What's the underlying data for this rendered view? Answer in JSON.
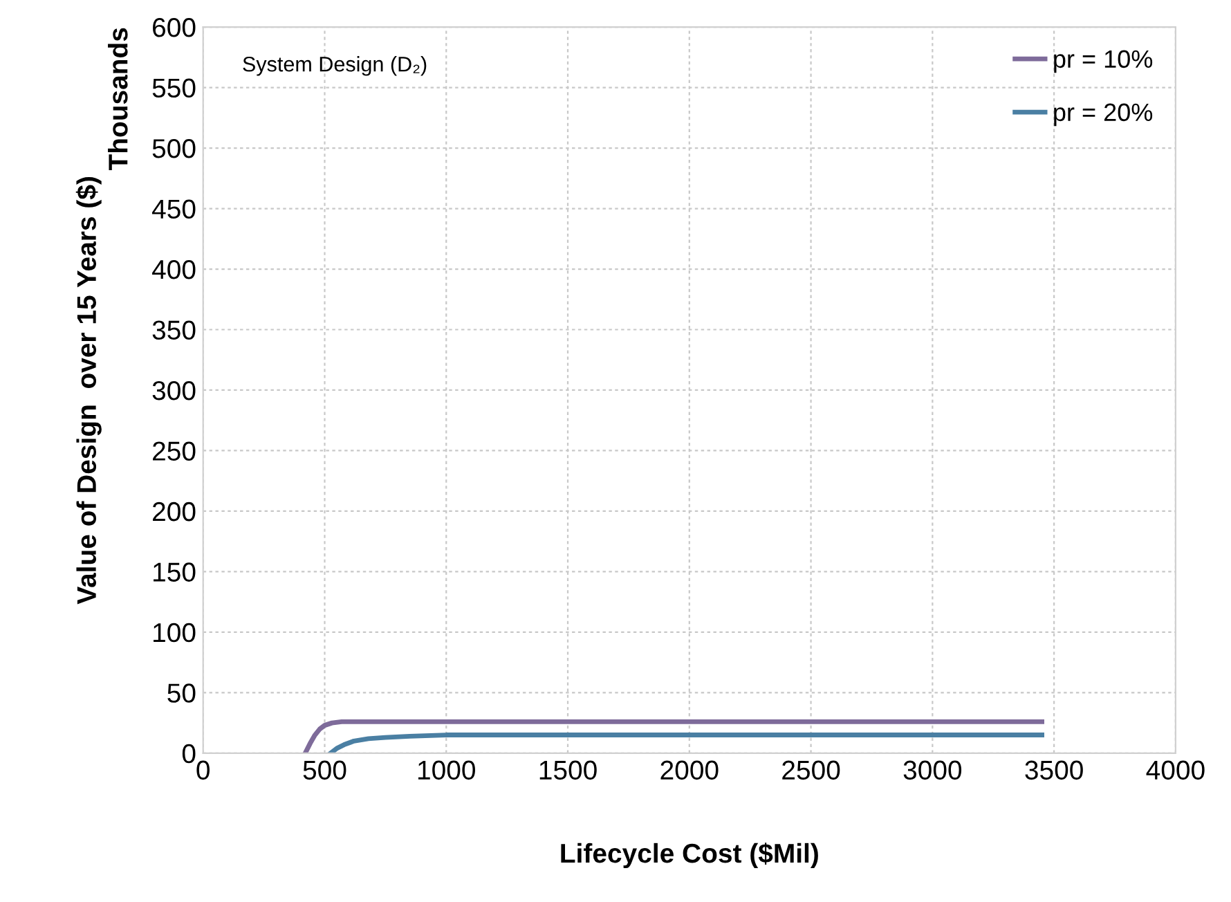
{
  "chart_data": {
    "type": "line",
    "title": "System Design (D₂)",
    "xlabel": "Lifecycle Cost ($Mil)",
    "ylabel": "Value of Design  over 15 Years ($)",
    "annotations": [
      "Thousands"
    ],
    "xlim": [
      0,
      4000
    ],
    "xticks": [
      0,
      500,
      1000,
      1500,
      2000,
      2500,
      3000,
      3500,
      4000
    ],
    "ylim": [
      0,
      600
    ],
    "yticks": [
      0,
      50,
      100,
      150,
      200,
      250,
      300,
      350,
      400,
      450,
      500,
      550,
      600
    ],
    "grid": true,
    "legend": "top right",
    "marker": "none",
    "line_style": "solid",
    "series": [
      {
        "name": "pr = 10%",
        "color": "#7e6b9a",
        "x": [
          420,
          440,
          460,
          480,
          500,
          530,
          570,
          650,
          800,
          1500,
          3450
        ],
        "values": [
          0,
          8,
          15,
          20,
          23,
          25,
          26,
          26,
          26,
          26,
          26
        ]
      },
      {
        "name": "pr = 20%",
        "color": "#4a7fa3",
        "x": [
          525,
          550,
          580,
          620,
          680,
          750,
          850,
          1000,
          1500,
          3450
        ],
        "values": [
          0,
          4,
          7,
          10,
          12,
          13,
          14,
          15,
          15,
          15
        ]
      }
    ]
  }
}
